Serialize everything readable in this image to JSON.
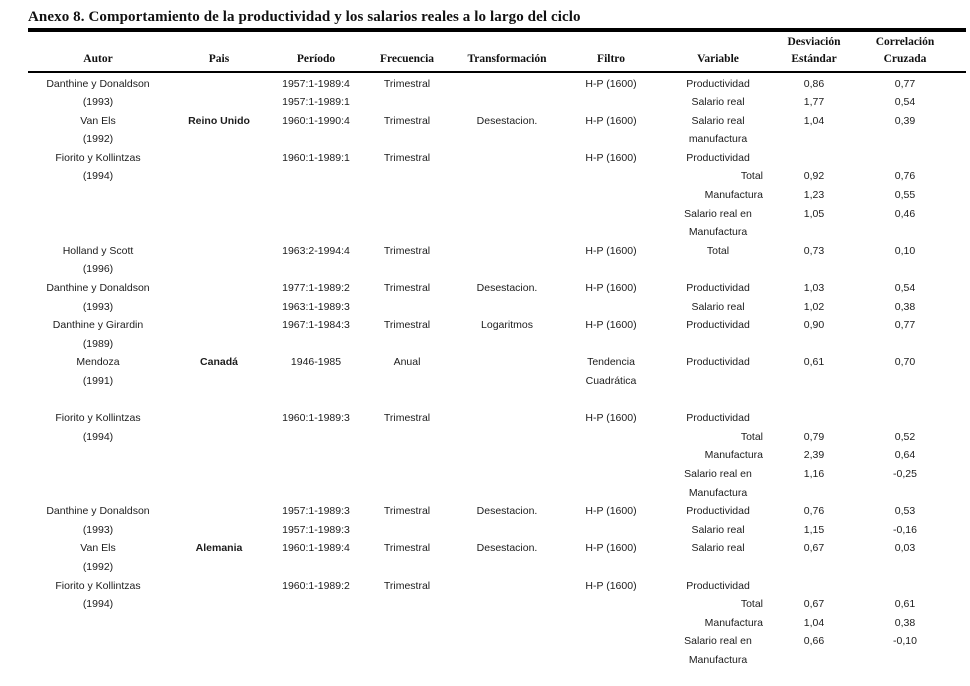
{
  "title": "Anexo 8. Comportamiento de la productividad y los salarios reales a lo largo del ciclo",
  "table": {
    "header_line1": [
      "",
      "",
      "",
      "",
      "",
      "",
      "",
      "Desviación",
      "Correlación"
    ],
    "header_line2": [
      "Autor",
      "Pais",
      "Período",
      "Frecuencia",
      "Transformación",
      "Filtro",
      "Variable",
      "Estándar",
      "Cruzada"
    ],
    "column_ids": [
      "autor",
      "pais",
      "periodo",
      "frecuencia",
      "transformacion",
      "filtro",
      "variable",
      "desviacion-estandar",
      "correlacion-cruzada"
    ],
    "rows": [
      [
        "Danthine y Donaldson",
        "",
        "1957:1-1989:4",
        "Trimestral",
        "",
        "H-P (1600)",
        "Productividad",
        "0,86",
        "0,77"
      ],
      [
        "(1993)",
        "",
        "1957:1-1989:1",
        "",
        "",
        "",
        "Salario real",
        "1,77",
        "0,54"
      ],
      [
        "Van Els",
        {
          "t": "Reino Unido",
          "b": true
        },
        "1960:1-1990:4",
        "Trimestral",
        "Desestacion.",
        "H-P (1600)",
        "Salario real",
        "1,04",
        "0,39"
      ],
      [
        "(1992)",
        "",
        "",
        "",
        "",
        "",
        "manufactura",
        "",
        ""
      ],
      [
        "Fiorito y Kollintzas",
        "",
        "1960:1-1989:1",
        "Trimestral",
        "",
        "H-P (1600)",
        "Productividad",
        "",
        ""
      ],
      [
        "(1994)",
        "",
        "",
        "",
        "",
        "",
        {
          "t": "Total",
          "a": "r"
        },
        "0,92",
        "0,76"
      ],
      [
        "",
        "",
        "",
        "",
        "",
        "",
        {
          "t": "Manufactura",
          "a": "r"
        },
        "1,23",
        "0,55"
      ],
      [
        "",
        "",
        "",
        "",
        "",
        "",
        "Salario real en",
        "1,05",
        "0,46"
      ],
      [
        "",
        "",
        "",
        "",
        "",
        "",
        "Manufactura",
        "",
        ""
      ],
      [
        "Holland y Scott",
        "",
        "1963:2-1994:4",
        "Trimestral",
        "",
        "H-P (1600)",
        "Total",
        "0,73",
        "0,10"
      ],
      [
        "(1996)",
        "",
        "",
        "",
        "",
        "",
        "",
        "",
        ""
      ],
      [
        "Danthine y Donaldson",
        "",
        "1977:1-1989:2",
        "Trimestral",
        "Desestacion.",
        "H-P (1600)",
        "Productividad",
        "1,03",
        "0,54"
      ],
      [
        "(1993)",
        "",
        "1963:1-1989:3",
        "",
        "",
        "",
        "Salario real",
        "1,02",
        "0,38"
      ],
      [
        "Danthine y Girardin",
        "",
        "1967:1-1984:3",
        "Trimestral",
        "Logaritmos",
        "H-P (1600)",
        "Productividad",
        "0,90",
        "0,77"
      ],
      [
        "(1989)",
        "",
        "",
        "",
        "",
        "",
        "",
        "",
        ""
      ],
      [
        "Mendoza",
        {
          "t": "Canadá",
          "b": true
        },
        "1946-1985",
        "Anual",
        "",
        "Tendencia",
        "Productividad",
        "0,61",
        "0,70"
      ],
      [
        "(1991)",
        "",
        "",
        "",
        "",
        "Cuadrática",
        "",
        "",
        ""
      ],
      [
        "",
        "",
        "",
        "",
        "",
        "",
        "",
        "",
        ""
      ],
      [
        "Fiorito y Kollintzas",
        "",
        "1960:1-1989:3",
        "Trimestral",
        "",
        "H-P (1600)",
        "Productividad",
        "",
        ""
      ],
      [
        "(1994)",
        "",
        "",
        "",
        "",
        "",
        {
          "t": "Total",
          "a": "r"
        },
        "0,79",
        "0,52"
      ],
      [
        "",
        "",
        "",
        "",
        "",
        "",
        {
          "t": "Manufactura",
          "a": "r"
        },
        "2,39",
        "0,64"
      ],
      [
        "",
        "",
        "",
        "",
        "",
        "",
        "Salario real en",
        "1,16",
        "-0,25"
      ],
      [
        "",
        "",
        "",
        "",
        "",
        "",
        "Manufactura",
        "",
        ""
      ],
      [
        "Danthine y Donaldson",
        "",
        "1957:1-1989:3",
        "Trimestral",
        "Desestacion.",
        "H-P (1600)",
        "Productividad",
        "0,76",
        "0,53"
      ],
      [
        "(1993)",
        "",
        "1957:1-1989:3",
        "",
        "",
        "",
        "Salario real",
        "1,15",
        "-0,16"
      ],
      [
        "Van Els",
        {
          "t": "Alemania",
          "b": true
        },
        "1960:1-1989:4",
        "Trimestral",
        "Desestacion.",
        "H-P (1600)",
        "Salario real",
        "0,67",
        "0,03"
      ],
      [
        "(1992)",
        "",
        "",
        "",
        "",
        "",
        "",
        "",
        ""
      ],
      [
        "Fiorito y Kollintzas",
        "",
        "1960:1-1989:2",
        "Trimestral",
        "",
        "H-P (1600)",
        "Productividad",
        "",
        ""
      ],
      [
        "(1994)",
        "",
        "",
        "",
        "",
        "",
        {
          "t": "Total",
          "a": "r"
        },
        "0,67",
        "0,61"
      ],
      [
        "",
        "",
        "",
        "",
        "",
        "",
        {
          "t": "Manufactura",
          "a": "r"
        },
        "1,04",
        "0,38"
      ],
      [
        "",
        "",
        "",
        "",
        "",
        "",
        "Salario real en",
        "0,66",
        "-0,10"
      ],
      [
        "",
        "",
        "",
        "",
        "",
        "",
        "Manufactura",
        "",
        ""
      ]
    ],
    "text_color": "#1c1c1c",
    "rule_color": "#000000"
  }
}
